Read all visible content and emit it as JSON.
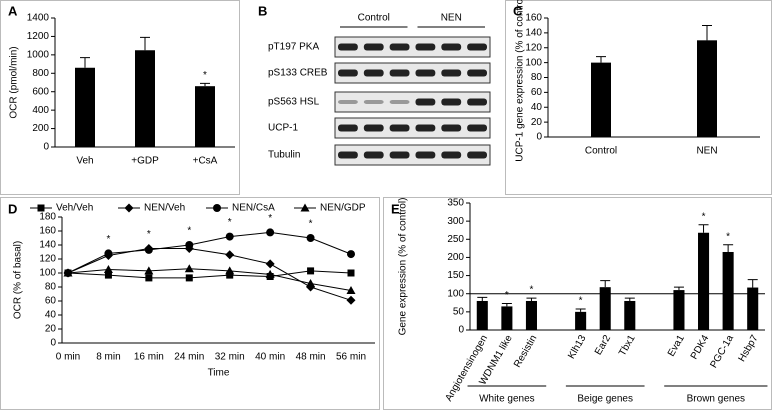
{
  "chart_data": [
    {
      "type": "bar",
      "panel": "A",
      "ylabel": "OCR (pmol/min)",
      "categories": [
        "Veh",
        "+GDP",
        "+CsA"
      ],
      "values": [
        860,
        1050,
        660
      ],
      "errors": [
        110,
        140,
        30
      ],
      "sig": [
        null,
        null,
        "*"
      ],
      "color": "#000000",
      "ylim": [
        0,
        1400
      ],
      "yticks": [
        0,
        200,
        400,
        600,
        800,
        1000,
        1200,
        1400
      ]
    },
    {
      "type": "blot",
      "panel": "B",
      "groups": [
        "Control",
        "NEN"
      ],
      "rows": [
        "pT197 PKA",
        "pS133 CREB",
        "pS563 HSL",
        "UCP-1",
        "Tubulin"
      ]
    },
    {
      "type": "bar",
      "panel": "C",
      "ylabel": "UCP-1 gene expression (% of control)",
      "categories": [
        "Control",
        "NEN"
      ],
      "values": [
        100,
        130
      ],
      "errors": [
        8,
        20
      ],
      "sig": [
        null,
        null
      ],
      "color": "#000000",
      "ylim": [
        0,
        160
      ],
      "yticks": [
        0,
        20,
        40,
        60,
        80,
        100,
        120,
        140,
        160
      ]
    },
    {
      "type": "line",
      "panel": "D",
      "ylabel": "OCR (% of basal)",
      "xlabel": "Time",
      "categories": [
        "0 min",
        "8 min",
        "16 min",
        "24 min",
        "32 min",
        "40 min",
        "48 min",
        "56 min"
      ],
      "series": [
        {
          "name": "Veh/Veh",
          "marker": "square",
          "color": "#000000",
          "values": [
            100,
            97,
            93,
            93,
            97,
            95,
            103,
            100
          ]
        },
        {
          "name": "NEN/Veh",
          "marker": "diamond",
          "color": "#000000",
          "values": [
            100,
            125,
            135,
            135,
            126,
            113,
            80,
            61
          ]
        },
        {
          "name": "NEN/CsA",
          "marker": "circle",
          "color": "#000000",
          "values": [
            100,
            128,
            133,
            140,
            152,
            158,
            150,
            127
          ]
        },
        {
          "name": "NEN/GDP",
          "marker": "triangle",
          "color": "#000000",
          "values": [
            100,
            105,
            103,
            106,
            103,
            98,
            85,
            75
          ]
        }
      ],
      "sig": [
        null,
        "*",
        "*",
        "*",
        "*",
        "*",
        "*",
        null
      ],
      "ylim": [
        0,
        180
      ],
      "yticks": [
        0,
        20,
        40,
        60,
        80,
        100,
        120,
        140,
        160,
        180
      ]
    },
    {
      "type": "bar",
      "panel": "E",
      "ylabel": "Gene expression (% of control)",
      "categories": [
        "Angiotensinogen",
        "WDNM1 like",
        "Resistin",
        null,
        "Klh13",
        "Ear2",
        "Tbx1",
        null,
        "Eva1",
        "PDK4",
        "PGC-1a",
        "Hsbp7"
      ],
      "values": [
        80,
        65,
        80,
        null,
        50,
        118,
        80,
        null,
        110,
        268,
        215,
        117
      ],
      "errors": [
        10,
        8,
        8,
        null,
        8,
        18,
        8,
        null,
        8,
        22,
        20,
        22
      ],
      "sig": [
        null,
        "*",
        "*",
        null,
        "*",
        null,
        null,
        null,
        null,
        "*",
        "*",
        null
      ],
      "groups": [
        "White genes",
        "Beige genes",
        "Brown genes"
      ],
      "refline": 100,
      "color": "#000000",
      "ylim": [
        0,
        350
      ],
      "yticks": [
        0,
        50,
        100,
        150,
        200,
        250,
        300,
        350
      ]
    }
  ]
}
